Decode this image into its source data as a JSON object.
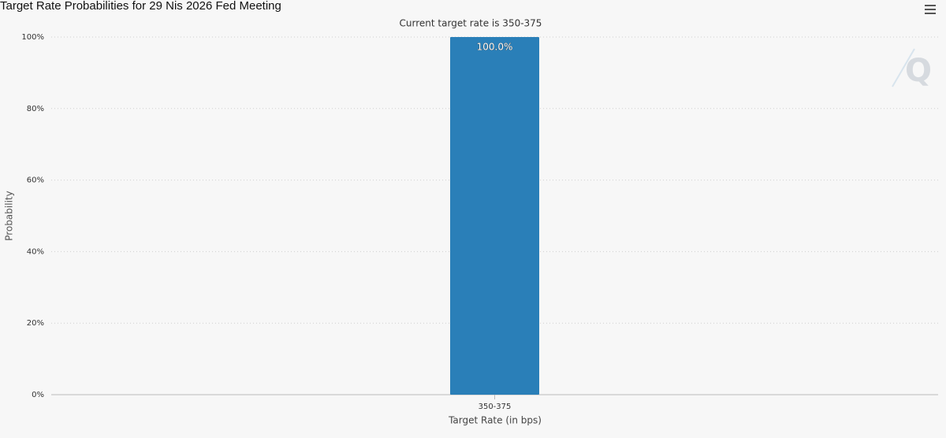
{
  "chart_data": {
    "type": "bar",
    "title": "Target Rate Probabilities for 29 Nis 2026 Fed Meeting",
    "subtitle": "Current target rate is 350-375",
    "x_label": "Target Rate (in bps)",
    "y_label": "Probability",
    "categories": [
      "350-375"
    ],
    "values": [
      100
    ],
    "value_labels": [
      "100.0%"
    ],
    "color": "#2a7fb8",
    "ylim": [
      0,
      100
    ],
    "yticks": [
      {
        "value": 0,
        "label": "0%"
      },
      {
        "value": 20,
        "label": "20%"
      },
      {
        "value": 40,
        "label": "40%"
      },
      {
        "value": 60,
        "label": "60%"
      },
      {
        "value": 80,
        "label": "80%"
      },
      {
        "value": 100,
        "label": "100%"
      }
    ],
    "grid": true
  }
}
